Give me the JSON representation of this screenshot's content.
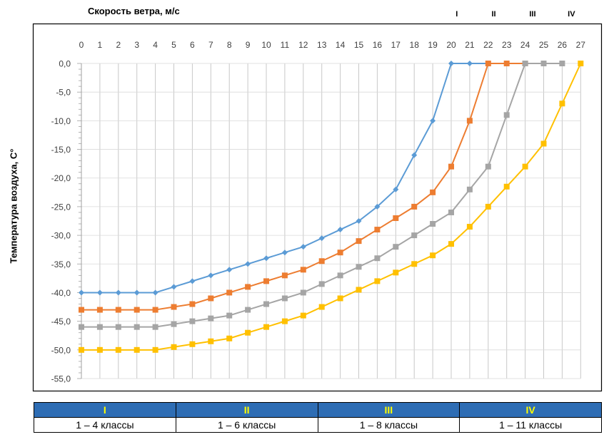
{
  "chart_data": {
    "type": "line",
    "xlabel": "Скорость ветра, м/с",
    "ylabel": "Температура воздуха, С°",
    "xlim": [
      0,
      27
    ],
    "ylim": [
      -55,
      0
    ],
    "x_ticks": [
      "0",
      "1",
      "2",
      "3",
      "4",
      "5",
      "6",
      "7",
      "8",
      "9",
      "10",
      "11",
      "12",
      "13",
      "14",
      "15",
      "16",
      "17",
      "18",
      "19",
      "20",
      "21",
      "22",
      "23",
      "24",
      "25",
      "26",
      "27"
    ],
    "y_ticks": [
      "0,0",
      "-5,0",
      "-10,0",
      "-15,0",
      "-20,0",
      "-25,0",
      "-30,0",
      "-35,0",
      "-40,0",
      "-45,0",
      "-50,0",
      "-55,0"
    ],
    "grid": true,
    "series": [
      {
        "name": "I",
        "color": "#5B9BD5",
        "marker": "diamond",
        "x": [
          0,
          1,
          2,
          3,
          4,
          5,
          6,
          7,
          8,
          9,
          10,
          11,
          12,
          13,
          14,
          15,
          16,
          17,
          18,
          19,
          20
        ],
        "y": [
          -40,
          -40,
          -40,
          -40,
          -40,
          -39,
          -38,
          -37,
          -36,
          -35,
          -34,
          -33,
          -32,
          -30.5,
          -29,
          -27.5,
          -25,
          -22,
          -16,
          -10,
          0
        ],
        "extra_x": [
          21,
          22
        ],
        "extra_y": [
          0,
          0
        ]
      },
      {
        "name": "II",
        "color": "#ED7D31",
        "marker": "square",
        "x": [
          0,
          1,
          2,
          3,
          4,
          5,
          6,
          7,
          8,
          9,
          10,
          11,
          12,
          13,
          14,
          15,
          16,
          17,
          18,
          19,
          20,
          21,
          22
        ],
        "y": [
          -43,
          -43,
          -43,
          -43,
          -43,
          -42.5,
          -42,
          -41,
          -40,
          -39,
          -38,
          -37,
          -36,
          -34.5,
          -33,
          -31,
          -29,
          -27,
          -25,
          -22.5,
          -18,
          -10,
          0
        ],
        "extra_x": [
          23,
          24
        ],
        "extra_y": [
          0,
          0
        ]
      },
      {
        "name": "III",
        "color": "#A5A5A5",
        "marker": "square",
        "x": [
          0,
          1,
          2,
          3,
          4,
          5,
          6,
          7,
          8,
          9,
          10,
          11,
          12,
          13,
          14,
          15,
          16,
          17,
          18,
          19,
          20,
          21,
          22,
          23,
          24
        ],
        "y": [
          -46,
          -46,
          -46,
          -46,
          -46,
          -45.5,
          -45,
          -44.5,
          -44,
          -43,
          -42,
          -41,
          -40,
          -38.5,
          -37,
          -35.5,
          -34,
          -32,
          -30,
          -28,
          -26,
          -22,
          -18,
          -9,
          0
        ],
        "extra_x": [
          25,
          26
        ],
        "extra_y": [
          0,
          0
        ]
      },
      {
        "name": "IV",
        "color": "#FFC000",
        "marker": "square",
        "x": [
          0,
          1,
          2,
          3,
          4,
          5,
          6,
          7,
          8,
          9,
          10,
          11,
          12,
          13,
          14,
          15,
          16,
          17,
          18,
          19,
          20,
          21,
          22,
          23,
          24,
          25,
          26,
          27
        ],
        "y": [
          -50,
          -50,
          -50,
          -50,
          -50,
          -49.5,
          -49,
          -48.5,
          -48,
          -47,
          -46,
          -45,
          -44,
          -42.5,
          -41,
          -39.5,
          -38,
          -36.5,
          -35,
          -33.5,
          -31.5,
          -28.5,
          -25,
          -21.5,
          -18,
          -14,
          -7,
          0
        ],
        "extra_x": [],
        "extra_y": []
      }
    ]
  },
  "region_labels": [
    {
      "text": "I",
      "x": 20.3
    },
    {
      "text": "II",
      "x": 22.3
    },
    {
      "text": "III",
      "x": 24.4
    },
    {
      "text": "IV",
      "x": 26.5
    }
  ],
  "legend_table": {
    "headers": [
      "I",
      "II",
      "III",
      "IV"
    ],
    "values": [
      "1 – 4 классы",
      "1 – 6 классы",
      "1 – 8 классы",
      "1 – 11 классы"
    ]
  }
}
